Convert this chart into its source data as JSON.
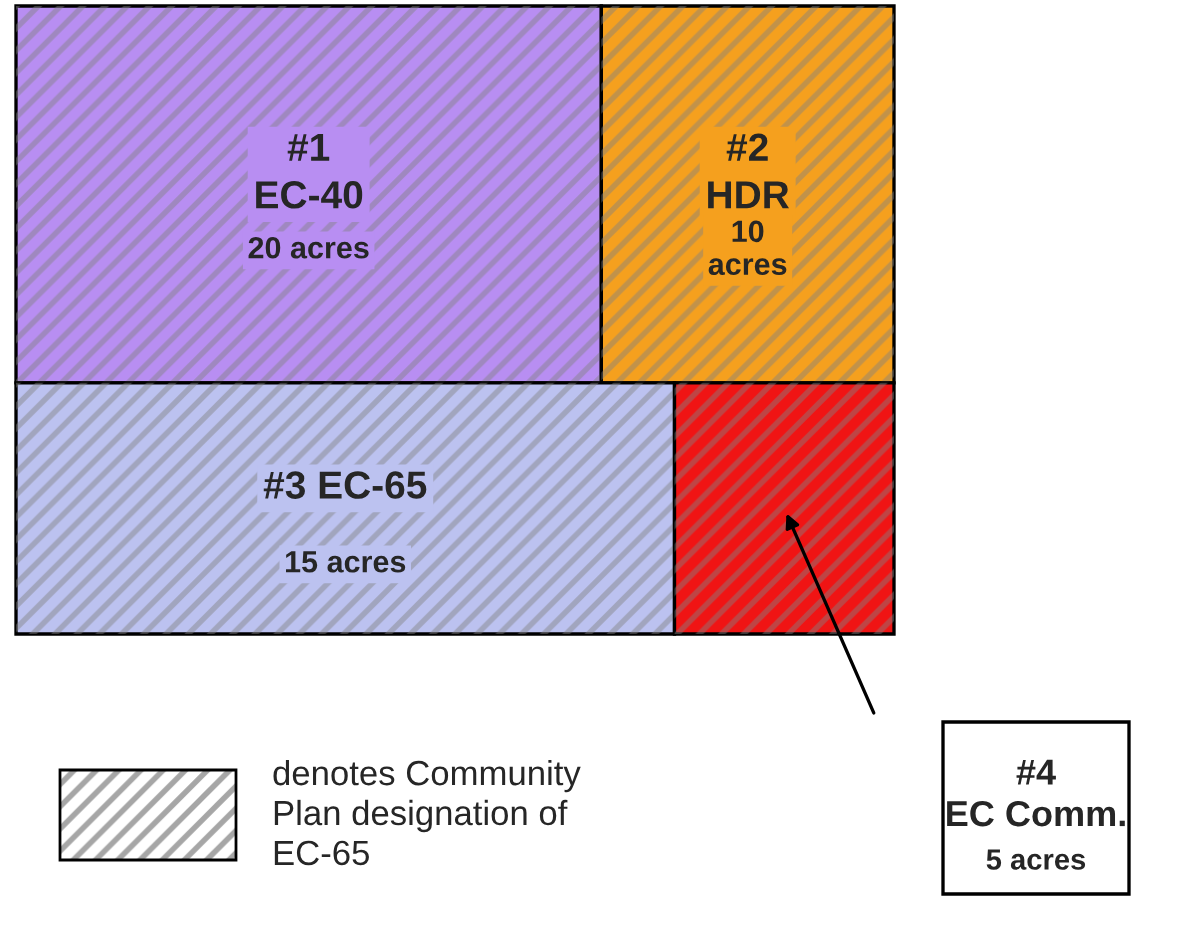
{
  "chart_data": {
    "type": "other",
    "categories": [
      "#1\nEC-40",
      "#2\nHDR",
      "#3 EC-65",
      "#4\nEC Comm."
    ],
    "values": [
      20,
      10,
      15,
      5
    ],
    "value_labels": [
      "20 acres",
      "10\nacres",
      "15 acres",
      "5 acres"
    ],
    "colors": [
      "#b88ef2",
      "#f5a01e",
      "#bcc2f0",
      "#f01414"
    ],
    "annotations": [
      "denotes Community\nPlan designation of\nEC-65"
    ]
  }
}
